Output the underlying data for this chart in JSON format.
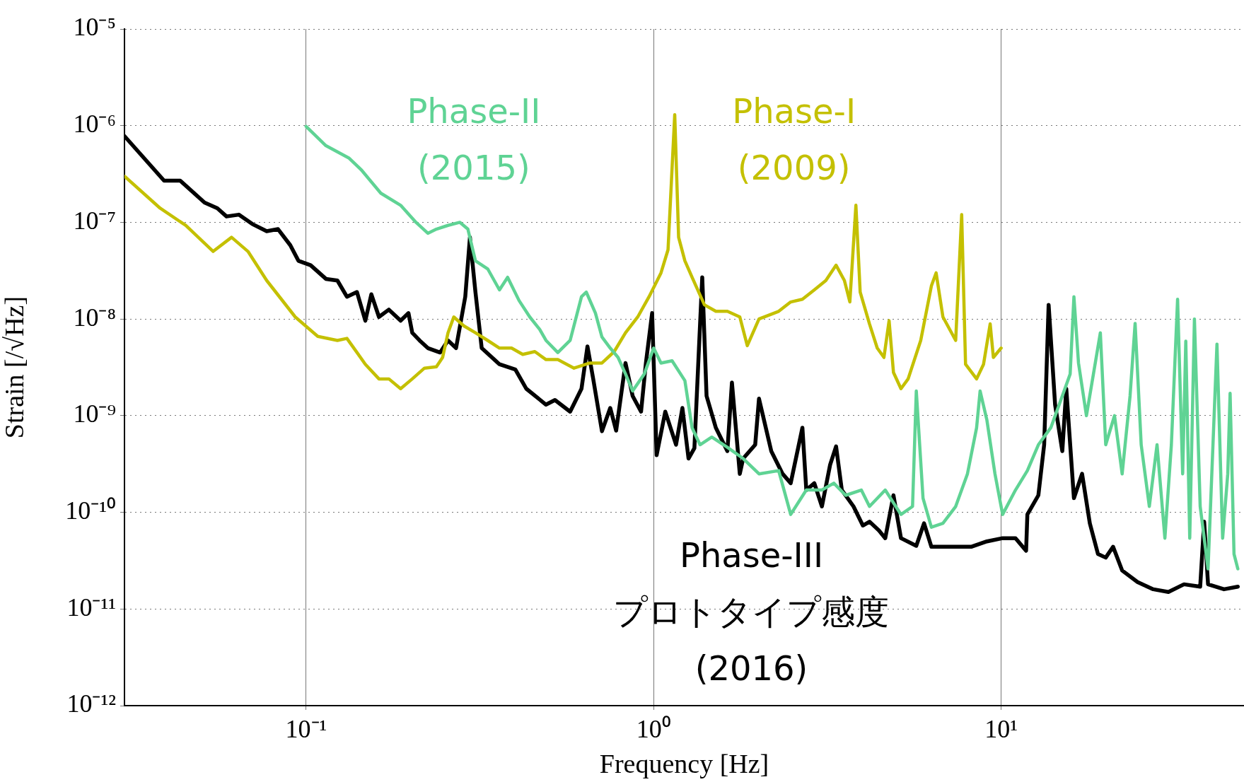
{
  "chart_data": {
    "type": "line",
    "xlabel": "Frequency [Hz]",
    "ylabel": "Strain [/√Hz]",
    "log": "xy",
    "grid": true,
    "xlim": [
      0.03,
      50
    ],
    "ylim": [
      1e-12,
      1e-05
    ],
    "xticks": [
      {
        "value": 0.1,
        "label": "10⁻¹"
      },
      {
        "value": 1,
        "label": "10⁰"
      },
      {
        "value": 10,
        "label": "10¹"
      }
    ],
    "yticks": [
      {
        "value": 1e-12,
        "label": "10⁻¹²"
      },
      {
        "value": 1e-11,
        "label": "10⁻¹¹"
      },
      {
        "value": 1e-10,
        "label": "10⁻¹⁰"
      },
      {
        "value": 1e-09,
        "label": "10⁻⁹"
      },
      {
        "value": 1e-08,
        "label": "10⁻⁸"
      },
      {
        "value": 1e-07,
        "label": "10⁻⁷"
      },
      {
        "value": 1e-06,
        "label": "10⁻⁶"
      },
      {
        "value": 1e-05,
        "label": "10⁻⁵"
      }
    ],
    "series": [
      {
        "name": "Phase-II\n(2015)",
        "color": "#5fd394",
        "x": [
          0.1,
          0.114,
          0.133,
          0.144,
          0.164,
          0.187,
          0.207,
          0.224,
          0.237,
          0.256,
          0.277,
          0.292,
          0.307,
          0.333,
          0.36,
          0.38,
          0.41,
          0.44,
          0.47,
          0.49,
          0.53,
          0.575,
          0.62,
          0.64,
          0.68,
          0.71,
          0.75,
          0.79,
          0.83,
          0.87,
          0.94,
          1.0,
          1.05,
          1.13,
          1.23,
          1.29,
          1.36,
          1.47,
          1.63,
          1.81,
          2.01,
          2.29,
          2.48,
          2.75,
          3.05,
          3.3,
          3.57,
          3.96,
          4.18,
          4.64,
          5.15,
          5.56,
          5.7,
          5.96,
          6.3,
          6.8,
          7.4,
          8.0,
          8.5,
          8.7,
          9.1,
          9.6,
          10.1,
          11.0,
          11.9,
          12.8,
          13.9,
          15.0,
          15.8,
          16.2,
          16.7,
          17.6,
          19.3,
          20.0,
          21.2,
          22.3,
          23.5,
          24.3,
          25.3,
          26.7,
          28.1,
          29.6,
          30.9,
          32.2,
          33.3,
          34.0,
          34.9,
          36.0,
          37.4,
          39.4,
          41.8,
          43.4,
          44.9,
          45.6,
          46.8,
          48
        ],
        "values": [
          9.8e-07,
          6.2e-07,
          4.6e-07,
          3.5e-07,
          2e-07,
          1.5e-07,
          1e-07,
          7.7e-08,
          8.5e-08,
          9.3e-08,
          1e-07,
          8.5e-08,
          4e-08,
          3.3e-08,
          2e-08,
          2.7e-08,
          1.55e-08,
          1.05e-08,
          7.8e-09,
          6e-09,
          4.5e-09,
          6e-09,
          1.7e-08,
          1.9e-08,
          1.15e-08,
          6.5e-09,
          5e-09,
          4e-09,
          2.7e-09,
          1.8e-09,
          2.7e-09,
          5e-09,
          3.5e-09,
          3.7e-09,
          2.3e-09,
          7.5e-10,
          5e-10,
          6e-10,
          4.7e-10,
          3.6e-10,
          2.5e-10,
          2.7e-10,
          9.5e-11,
          1.7e-10,
          1.7e-10,
          2e-10,
          1.5e-10,
          1.7e-10,
          1.15e-10,
          1.7e-10,
          9.5e-11,
          1.15e-10,
          1.8e-09,
          1.4e-10,
          7e-11,
          7.7e-11,
          1.15e-10,
          2.5e-10,
          7.5e-10,
          1.8e-09,
          9e-10,
          2.5e-10,
          9.5e-11,
          1.7e-10,
          2.7e-10,
          5e-10,
          7.5e-10,
          1.6e-09,
          2.7e-09,
          1.7e-08,
          3.5e-09,
          1e-09,
          7.2e-09,
          5e-10,
          1e-09,
          2.5e-10,
          1.6e-09,
          9e-09,
          5e-10,
          1.15e-10,
          5e-10,
          5.4e-11,
          5e-10,
          1.6e-08,
          2.5e-10,
          5.9e-09,
          5.4e-11,
          1e-08,
          1.15e-10,
          2.6e-11,
          5.5e-09,
          5.4e-11,
          2.5e-10,
          1.7e-09,
          3.7e-11,
          2.6e-11
        ]
      },
      {
        "name": "Phase-I\n(2009)",
        "color": "#c4c000",
        "x": [
          0.03,
          0.038,
          0.045,
          0.054,
          0.061,
          0.068,
          0.077,
          0.093,
          0.108,
          0.123,
          0.131,
          0.148,
          0.162,
          0.173,
          0.187,
          0.202,
          0.219,
          0.237,
          0.247,
          0.256,
          0.266,
          0.284,
          0.307,
          0.333,
          0.36,
          0.39,
          0.42,
          0.455,
          0.49,
          0.53,
          0.59,
          0.655,
          0.71,
          0.77,
          0.83,
          0.9,
          0.97,
          1.05,
          1.1,
          1.15,
          1.18,
          1.23,
          1.29,
          1.4,
          1.51,
          1.63,
          1.77,
          1.86,
          2.01,
          2.29,
          2.48,
          2.68,
          2.9,
          3.13,
          3.35,
          3.54,
          3.67,
          3.82,
          3.93,
          4.18,
          4.4,
          4.6,
          4.76,
          4.9,
          5.15,
          5.4,
          5.87,
          6.3,
          6.5,
          6.8,
          7.4,
          7.7,
          7.9,
          8.5,
          8.9,
          9.3,
          9.5,
          10.0
        ],
        "values": [
          3e-07,
          1.4e-07,
          9.3e-08,
          5e-08,
          7e-08,
          5e-08,
          2.5e-08,
          1.05e-08,
          6.6e-09,
          6e-09,
          6.3e-09,
          3.4e-09,
          2.4e-09,
          2.4e-09,
          1.9e-09,
          2.4e-09,
          3.1e-09,
          3.2e-09,
          4e-09,
          7.2e-09,
          1.05e-08,
          8.5e-09,
          7.2e-09,
          6e-09,
          5e-09,
          5e-09,
          4.3e-09,
          4.6e-09,
          3.8e-09,
          3.8e-09,
          3.1e-09,
          3.5e-09,
          3.5e-09,
          4.6e-09,
          7.2e-09,
          1.05e-08,
          1.7e-08,
          3e-08,
          5.2e-08,
          1.3e-06,
          7e-08,
          4e-08,
          2.7e-08,
          1.4e-08,
          1.2e-08,
          1.2e-08,
          1.05e-08,
          5.3e-09,
          1e-08,
          1.2e-08,
          1.5e-08,
          1.6e-08,
          2e-08,
          2.5e-08,
          3.6e-08,
          2.5e-08,
          1.5e-08,
          1.5e-07,
          1.9e-08,
          8.9e-09,
          5e-09,
          4e-09,
          9.6e-09,
          2.8e-09,
          1.9e-09,
          2.4e-09,
          6e-09,
          2.2e-08,
          3e-08,
          1.05e-08,
          6e-09,
          1.2e-07,
          3.4e-09,
          2.4e-09,
          3.4e-09,
          8.9e-09,
          4e-09,
          5e-09
        ]
      },
      {
        "name": "Phase-III\nプロトタイプ感度\n(2016)",
        "color": "#000000",
        "x": [
          0.03,
          0.039,
          0.0434,
          0.051,
          0.0555,
          0.059,
          0.064,
          0.07,
          0.077,
          0.083,
          0.09,
          0.095,
          0.103,
          0.114,
          0.123,
          0.131,
          0.14,
          0.148,
          0.154,
          0.162,
          0.173,
          0.187,
          0.197,
          0.202,
          0.212,
          0.224,
          0.243,
          0.256,
          0.27,
          0.287,
          0.296,
          0.307,
          0.32,
          0.36,
          0.4,
          0.43,
          0.49,
          0.52,
          0.575,
          0.62,
          0.645,
          0.67,
          0.71,
          0.75,
          0.78,
          0.83,
          0.87,
          0.92,
          0.95,
          0.99,
          1.02,
          1.08,
          1.16,
          1.21,
          1.26,
          1.31,
          1.35,
          1.38,
          1.42,
          1.51,
          1.63,
          1.68,
          1.77,
          1.81,
          1.96,
          2.01,
          2.18,
          2.35,
          2.48,
          2.68,
          2.75,
          2.9,
          3.05,
          3.22,
          3.35,
          3.48,
          3.76,
          4.0,
          4.18,
          4.45,
          4.64,
          4.9,
          5.15,
          5.7,
          6.0,
          6.3,
          7.0,
          8.2,
          9.1,
          10.1,
          11.0,
          11.8,
          11.9,
          12.8,
          13.3,
          13.7,
          14.3,
          15.0,
          15.4,
          16.2,
          17.1,
          18,
          19,
          20,
          21,
          22.3,
          24.7,
          27.4,
          30.3,
          33.6,
          37.4,
          38.4,
          39.4,
          43.8,
          48
        ],
        "values": [
          7.8e-07,
          2.7e-07,
          2.7e-07,
          1.6e-07,
          1.4e-07,
          1.15e-07,
          1.2e-07,
          9.6e-08,
          8.1e-08,
          8.5e-08,
          5.8e-08,
          4e-08,
          3.6e-08,
          2.6e-08,
          2.5e-08,
          1.7e-08,
          1.9e-08,
          9.6e-09,
          1.8e-08,
          1.05e-08,
          1.25e-08,
          9.6e-09,
          1.15e-08,
          7.2e-09,
          6e-09,
          5e-09,
          4.5e-09,
          6e-09,
          5e-09,
          1.7e-08,
          7e-08,
          1.9e-08,
          5e-09,
          3.4e-09,
          3e-09,
          1.9e-09,
          1.3e-09,
          1.45e-09,
          1.1e-09,
          1.9e-09,
          5.2e-09,
          2.4e-09,
          6.9e-10,
          1.2e-09,
          7e-10,
          3.5e-09,
          1.6e-09,
          1.1e-09,
          3.5e-09,
          1.15e-08,
          3.9e-10,
          1.1e-09,
          5e-10,
          1.2e-09,
          3.6e-10,
          4.6e-10,
          4.9e-09,
          2.7e-08,
          1.6e-09,
          7.5e-10,
          4.3e-10,
          2.2e-09,
          2.5e-10,
          3.6e-10,
          5e-10,
          1.5e-09,
          4.3e-10,
          2.5e-10,
          2e-10,
          7.5e-10,
          1.7e-10,
          2e-10,
          1.15e-10,
          3.1e-10,
          4.8e-10,
          1.7e-10,
          1.15e-10,
          7.3e-11,
          8e-11,
          6.5e-11,
          5.4e-11,
          1.5e-10,
          5.4e-11,
          4.5e-11,
          7.7e-11,
          4.4e-11,
          4.4e-11,
          4.4e-11,
          5e-11,
          5.4e-11,
          5.4e-11,
          4e-11,
          9.5e-11,
          1.5e-10,
          5e-10,
          1.4e-08,
          1.3e-09,
          4.3e-10,
          1.9e-09,
          1.4e-10,
          2.5e-10,
          7.7e-11,
          3.7e-11,
          3.4e-11,
          4.4e-11,
          2.5e-11,
          1.9e-11,
          1.6e-11,
          1.5e-11,
          1.8e-11,
          1.7e-11,
          8e-11,
          1.8e-11,
          1.6e-11,
          1.7e-11
        ]
      }
    ]
  }
}
